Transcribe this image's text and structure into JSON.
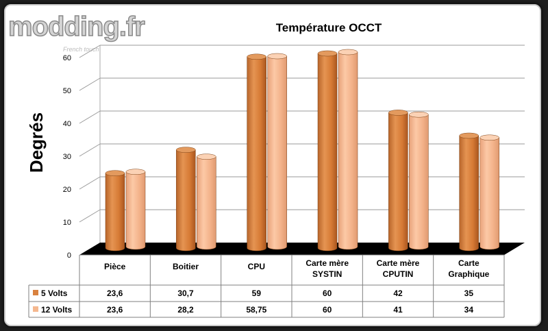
{
  "logo": {
    "text": "modding.fr",
    "tagline": "French touch"
  },
  "colors": {
    "series1_body": "#d9823f",
    "series1_top": "#e39a5e",
    "series2_body": "#f5b88f",
    "series2_top": "#fbd2b5",
    "floor": "#000000",
    "border": "#f0811d"
  },
  "chart_data": {
    "type": "bar",
    "title": "Température OCCT",
    "xlabel": "",
    "ylabel": "Degrés",
    "ylim": [
      0,
      60
    ],
    "yticks": [
      0,
      10,
      20,
      30,
      40,
      50,
      60
    ],
    "grid": true,
    "categories": [
      [
        "Pièce"
      ],
      [
        "Boitier"
      ],
      [
        "CPU"
      ],
      [
        "Carte mère",
        "SYSTIN"
      ],
      [
        "Carte mère",
        "CPUTIN"
      ],
      [
        "Carte",
        "Graphique"
      ]
    ],
    "series": [
      {
        "name": "5 Volts",
        "values": [
          23.6,
          30.7,
          59,
          60,
          42,
          35
        ],
        "labels": [
          "23,6",
          "30,7",
          "59",
          "60",
          "42",
          "35"
        ]
      },
      {
        "name": "12 Volts",
        "values": [
          23.6,
          28.2,
          58.75,
          60,
          41,
          34
        ],
        "labels": [
          "23,6",
          "28,2",
          "58,75",
          "60",
          "41",
          "34"
        ]
      }
    ],
    "legend": "data-table"
  }
}
